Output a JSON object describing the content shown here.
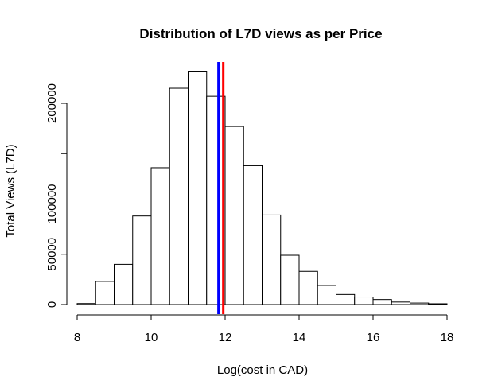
{
  "chart_data": {
    "type": "bar",
    "title": "Distribution of L7D views as per Price",
    "xlabel": "Log(cost in CAD)",
    "ylabel": "Total Views (L7D)",
    "xlim": [
      8,
      18
    ],
    "ylim": [
      0,
      200000
    ],
    "x_ticks": [
      8,
      10,
      12,
      14,
      16,
      18
    ],
    "y_ticks": [
      0,
      50000,
      100000,
      150000,
      200000
    ],
    "y_tick_labels": [
      "0",
      "50000",
      "100000",
      "",
      "200000"
    ],
    "grid": false,
    "bin_edges": [
      8,
      8.5,
      9,
      9.5,
      10,
      10.5,
      11,
      11.5,
      12,
      12.5,
      13,
      13.5,
      14,
      14.5,
      15,
      15.5,
      16,
      16.5,
      17,
      17.5,
      18
    ],
    "values": [
      1000,
      23000,
      40000,
      88000,
      136000,
      215000,
      232000,
      207000,
      177000,
      138000,
      89000,
      49000,
      33000,
      19000,
      10000,
      7500,
      5000,
      2500,
      1500,
      800
    ],
    "vlines": [
      {
        "x": 11.82,
        "color": "#0000ff"
      },
      {
        "x": 11.95,
        "color": "#ff0000"
      }
    ]
  }
}
